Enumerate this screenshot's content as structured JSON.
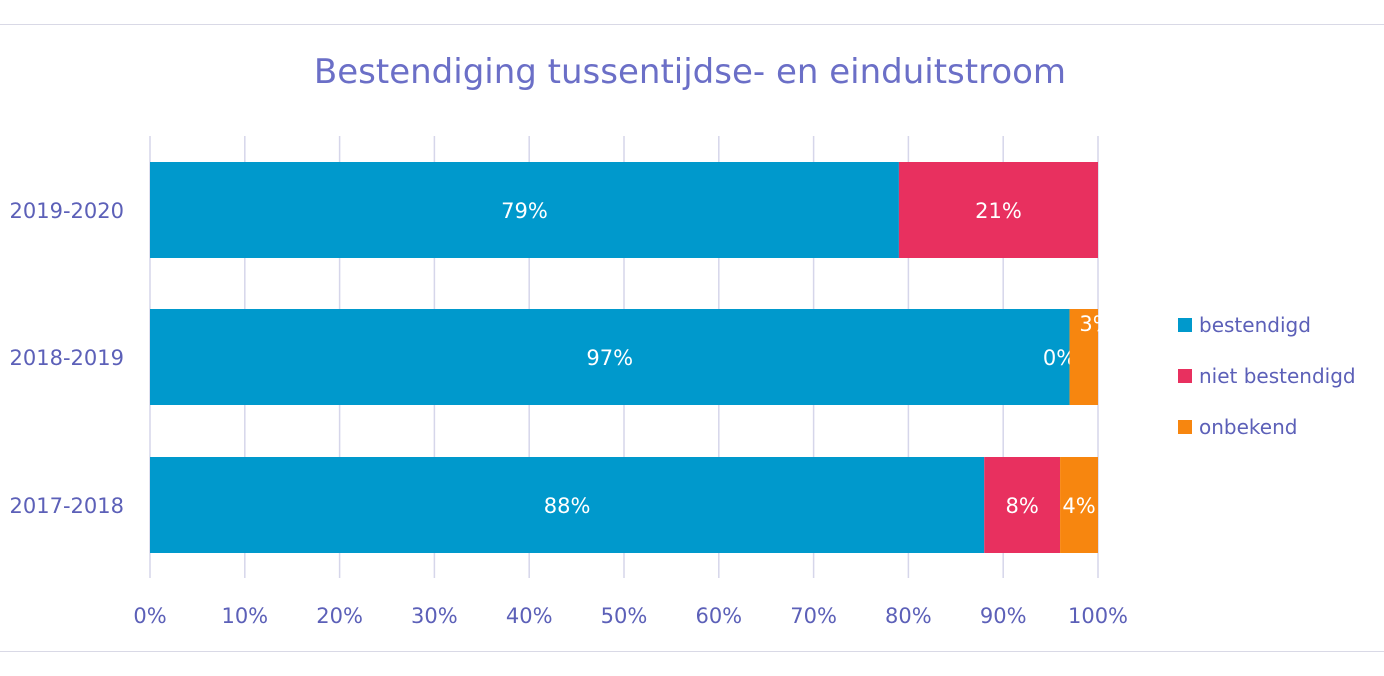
{
  "chart_data": {
    "type": "bar",
    "orientation": "horizontal",
    "stacked": "100%",
    "title": "Bestendiging tussentijdse- en einduitstroom",
    "categories": [
      "2019-2020",
      "2018-2019",
      "2017-2018"
    ],
    "series": [
      {
        "name": "bestendigd",
        "color": "#0099cc",
        "values": [
          79,
          97,
          88
        ],
        "labels": [
          "79%",
          "97%",
          "88%"
        ]
      },
      {
        "name": "niet bestendigd",
        "color": "#e8305f",
        "values": [
          21,
          0,
          8
        ],
        "labels": [
          "21%",
          "0%",
          "8%"
        ]
      },
      {
        "name": "onbekend",
        "color": "#f7860f",
        "values": [
          0,
          3,
          4
        ],
        "labels": [
          "",
          "3%",
          "4%"
        ]
      }
    ],
    "x_ticks": [
      "0%",
      "10%",
      "20%",
      "30%",
      "40%",
      "50%",
      "60%",
      "70%",
      "80%",
      "90%",
      "100%"
    ],
    "xlim": [
      0,
      100
    ],
    "grid": true,
    "legend_position": "right"
  }
}
